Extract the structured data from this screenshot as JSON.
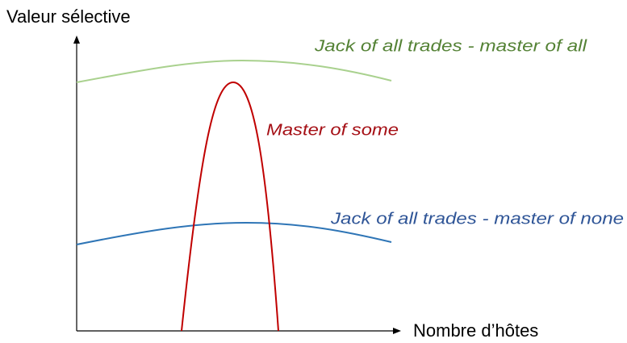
{
  "axes": {
    "y_label": "Valeur sélective",
    "x_label": "Nombre d’hôtes"
  },
  "curves": [
    {
      "label": "Jack of all trades - master of all"
    },
    {
      "label": "Master of some"
    },
    {
      "label": "Jack of all trades - master of none"
    }
  ]
}
